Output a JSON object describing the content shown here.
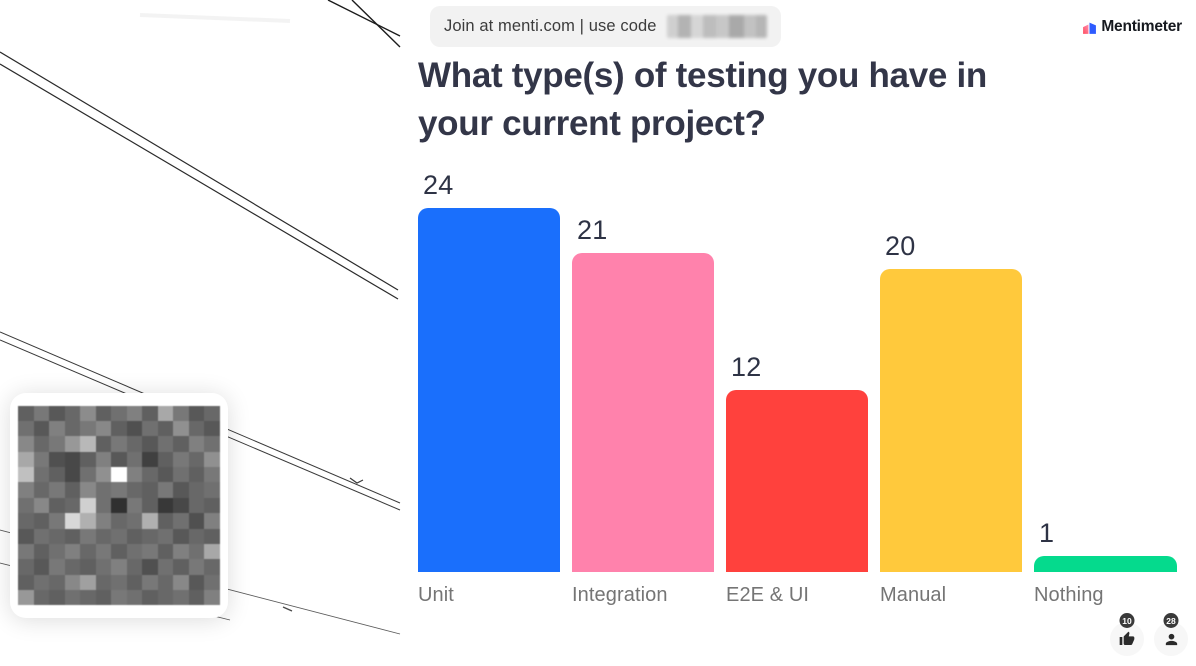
{
  "join_bar": {
    "text": "Join at menti.com | use code"
  },
  "brand": {
    "name": "Mentimeter"
  },
  "title": "What type(s) of testing you have in your current project?",
  "chart_data": {
    "type": "bar",
    "title": "What type(s) of testing you have in your current project?",
    "categories": [
      "Unit",
      "Integration",
      "E2E & UI",
      "Manual",
      "Nothing"
    ],
    "values": [
      24,
      21,
      12,
      20,
      1
    ],
    "colors": [
      "#1A6FFC",
      "#FF82AC",
      "#FF413D",
      "#FFC93C",
      "#05DA8D"
    ],
    "xlabel": "",
    "ylabel": "",
    "ylim": [
      0,
      24
    ],
    "grid": false,
    "axes_hidden": true,
    "value_labels_shown": true,
    "legend": "none"
  },
  "reactions": {
    "like_count": "10",
    "participants_count": "28"
  },
  "ui_colors": {
    "title_text": "#333648",
    "category_text": "#757575",
    "join_pill_bg": "#f2f2f2",
    "badge_bg": "#3a3a3a"
  },
  "qr_mosaic": [
    [
      96,
      120,
      88,
      104,
      140,
      96,
      112,
      128,
      96,
      168,
      120,
      88,
      104
    ],
    [
      112,
      88,
      128,
      104,
      120,
      136,
      96,
      80,
      112,
      96,
      144,
      104,
      88
    ],
    [
      136,
      104,
      120,
      152,
      184,
      96,
      120,
      104,
      88,
      112,
      96,
      128,
      112
    ],
    [
      168,
      120,
      80,
      72,
      96,
      128,
      88,
      112,
      64,
      96,
      120,
      104,
      144
    ],
    [
      192,
      112,
      96,
      72,
      112,
      144,
      255,
      128,
      104,
      88,
      112,
      96,
      120
    ],
    [
      128,
      104,
      120,
      96,
      136,
      112,
      120,
      104,
      96,
      120,
      88,
      104,
      112
    ],
    [
      112,
      136,
      96,
      104,
      208,
      112,
      48,
      120,
      96,
      56,
      72,
      104,
      96
    ],
    [
      104,
      96,
      120,
      216,
      176,
      128,
      104,
      112,
      176,
      96,
      112,
      80,
      128
    ],
    [
      88,
      112,
      104,
      96,
      120,
      104,
      112,
      96,
      104,
      112,
      88,
      104,
      96
    ],
    [
      120,
      96,
      112,
      128,
      104,
      120,
      96,
      112,
      120,
      96,
      128,
      112,
      168
    ],
    [
      104,
      88,
      120,
      104,
      96,
      112,
      128,
      104,
      80,
      112,
      96,
      120,
      104
    ],
    [
      96,
      112,
      104,
      136,
      160,
      104,
      112,
      96,
      120,
      104,
      136,
      88,
      112
    ],
    [
      152,
      104,
      96,
      112,
      104,
      96,
      120,
      112,
      96,
      104,
      112,
      96,
      128
    ]
  ]
}
